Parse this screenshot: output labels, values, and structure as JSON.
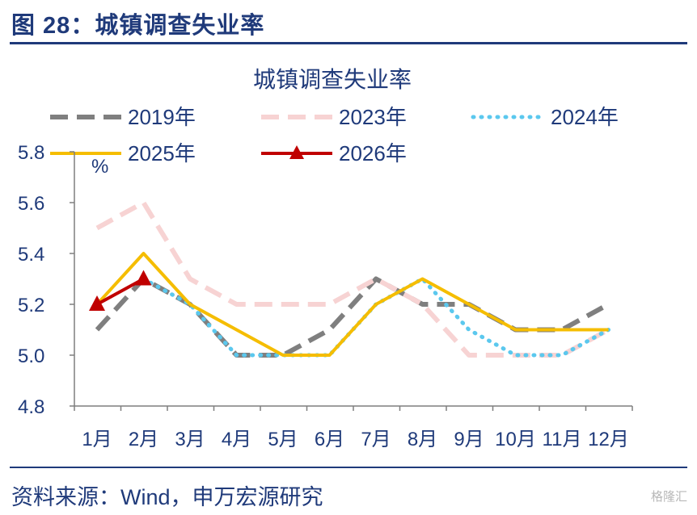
{
  "figure_title": "图 28：城镇调查失业率",
  "source_note": "资料来源：Wind，申万宏源研究",
  "watermark": "格隆汇",
  "chart_data": {
    "type": "line",
    "title": "城镇调查失业率",
    "ylabel": "%",
    "xlabel": "",
    "categories": [
      "1月",
      "2月",
      "3月",
      "4月",
      "5月",
      "6月",
      "7月",
      "8月",
      "9月",
      "10月",
      "11月",
      "12月"
    ],
    "ylim": [
      4.8,
      5.8
    ],
    "yticks": [
      "4.8",
      "5.0",
      "5.2",
      "5.4",
      "5.6",
      "5.8"
    ],
    "grid": false,
    "legend_position": "top",
    "series": [
      {
        "name": "2019年",
        "color": "#7f7f7f",
        "style": "dashed",
        "values": [
          5.1,
          5.3,
          5.2,
          5.0,
          5.0,
          5.1,
          5.3,
          5.2,
          5.2,
          5.1,
          5.1,
          5.2
        ]
      },
      {
        "name": "2023年",
        "color": "#f7d3d3",
        "style": "dashed",
        "values": [
          5.5,
          5.6,
          5.3,
          5.2,
          5.2,
          5.2,
          5.3,
          5.2,
          5.0,
          5.0,
          5.0,
          5.1
        ]
      },
      {
        "name": "2024年",
        "color": "#5bc8ee",
        "style": "dotted",
        "values": [
          null,
          5.3,
          5.2,
          5.0,
          5.0,
          5.0,
          5.2,
          5.3,
          5.1,
          5.0,
          5.0,
          5.1
        ]
      },
      {
        "name": "2025年",
        "color": "#f5bd00",
        "style": "solid",
        "values": [
          5.2,
          5.4,
          5.2,
          5.1,
          5.0,
          5.0,
          5.2,
          5.3,
          5.2,
          5.1,
          5.1,
          5.1
        ]
      },
      {
        "name": "2026年",
        "color": "#c00000",
        "style": "solid-marker",
        "values": [
          5.2,
          5.3,
          null,
          null,
          null,
          null,
          null,
          null,
          null,
          null,
          null,
          null
        ]
      }
    ]
  }
}
